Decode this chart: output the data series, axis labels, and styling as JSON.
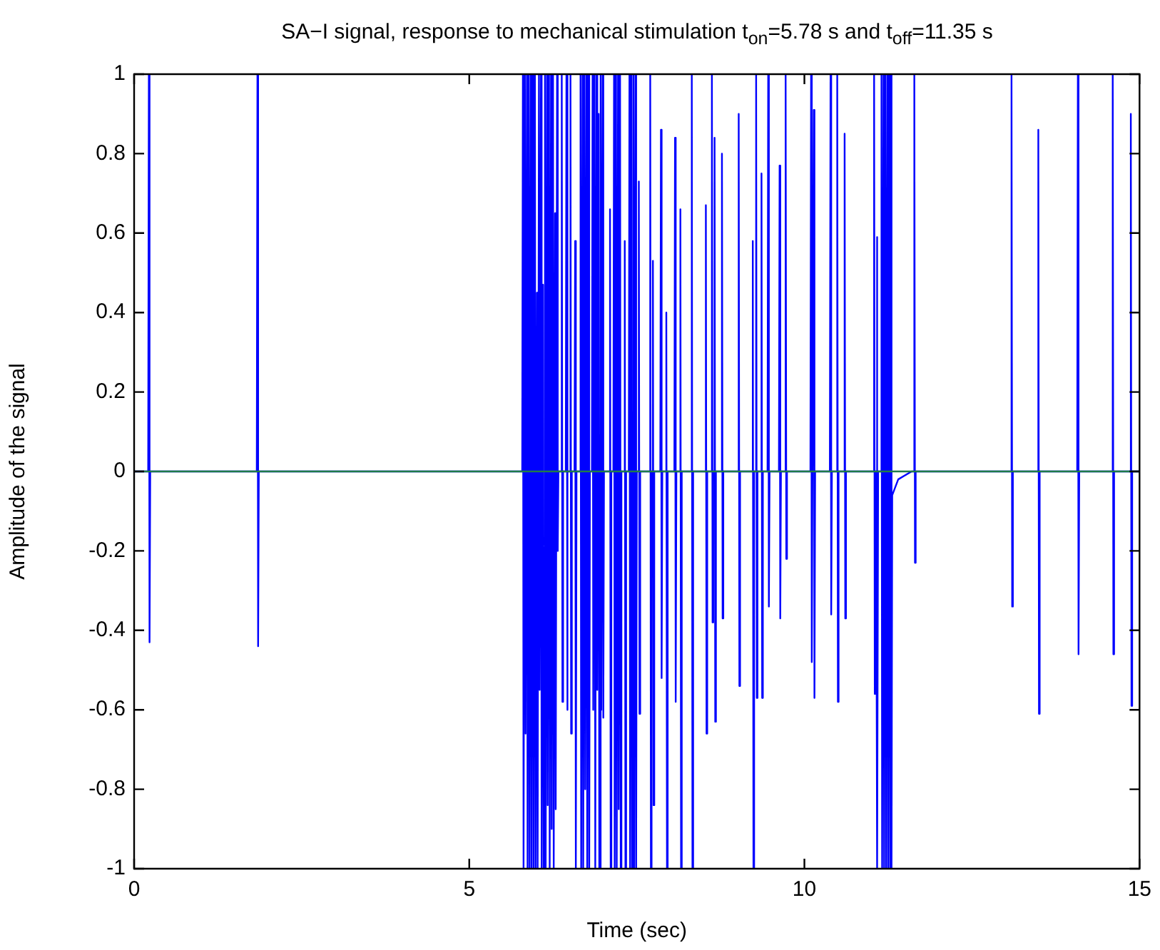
{
  "chart_data": {
    "type": "line",
    "title": "SA−I signal, response to mechanical stimulation t$_{on}$=5.78 s and t$_{off}$=11.35 s",
    "xlabel": "Time (sec)",
    "ylabel": "Amplitude of the signal",
    "xlim": [
      0,
      15
    ],
    "xticks": [
      0,
      5,
      10,
      15
    ],
    "ylim": [
      -1,
      1
    ],
    "yticks": [
      -1,
      -0.8,
      -0.6,
      -0.4,
      -0.2,
      0,
      0.2,
      0.4,
      0.6,
      0.8,
      1
    ],
    "grid": false,
    "marker": "none",
    "line_style": "solid",
    "series": [
      {
        "color": "#0000ff",
        "x": [
          0,
          0.21,
          0.22,
          0.23,
          0.24,
          1.83,
          1.84,
          1.85,
          1.86,
          5.79,
          5.8,
          5.81,
          5.83,
          5.84,
          5.86,
          5.87,
          5.89,
          5.9,
          5.92,
          5.93,
          5.95,
          5.96,
          5.98,
          5.99,
          6.01,
          6.02,
          6.04,
          6.05,
          6.07,
          6.08,
          6.1,
          6.11,
          6.13,
          6.14,
          6.16,
          6.17,
          6.19,
          6.2,
          6.22,
          6.23,
          6.25,
          6.26,
          6.28,
          6.29,
          6.31,
          6.32,
          6.33,
          6.37,
          6.38,
          6.39,
          6.4,
          6.44,
          6.45,
          6.46,
          6.47,
          6.5,
          6.51,
          6.52,
          6.53,
          6.57,
          6.58,
          6.59,
          6.6,
          6.65,
          6.66,
          6.67,
          6.69,
          6.7,
          6.72,
          6.73,
          6.75,
          6.76,
          6.78,
          6.79,
          6.8,
          6.83,
          6.84,
          6.85,
          6.87,
          6.88,
          6.9,
          6.91,
          6.93,
          6.94,
          6.96,
          6.97,
          6.99,
          7.0,
          7.01,
          7.09,
          7.1,
          7.11,
          7.12,
          7.15,
          7.16,
          7.17,
          7.19,
          7.2,
          7.22,
          7.23,
          7.25,
          7.26,
          7.27,
          7.31,
          7.32,
          7.33,
          7.34,
          7.38,
          7.39,
          7.4,
          7.42,
          7.43,
          7.45,
          7.46,
          7.48,
          7.49,
          7.5,
          7.52,
          7.53,
          7.54,
          7.55,
          7.69,
          7.7,
          7.71,
          7.72,
          7.73,
          7.74,
          7.75,
          7.76,
          7.85,
          7.86,
          7.87,
          7.88,
          7.93,
          7.94,
          7.95,
          7.96,
          8.06,
          8.07,
          8.08,
          8.09,
          8.14,
          8.15,
          8.16,
          8.17,
          8.31,
          8.32,
          8.33,
          8.34,
          8.52,
          8.53,
          8.54,
          8.55,
          8.61,
          8.62,
          8.63,
          8.64,
          8.65,
          8.66,
          8.67,
          8.68,
          8.76,
          8.77,
          8.78,
          8.79,
          9.01,
          9.02,
          9.03,
          9.04,
          9.22,
          9.23,
          9.24,
          9.25,
          9.27,
          9.28,
          9.29,
          9.3,
          9.35,
          9.36,
          9.37,
          9.38,
          9.45,
          9.46,
          9.47,
          9.48,
          9.62,
          9.63,
          9.64,
          9.65,
          9.71,
          9.72,
          9.73,
          9.74,
          10.09,
          10.1,
          10.11,
          10.12,
          10.13,
          10.14,
          10.15,
          10.16,
          10.38,
          10.39,
          10.4,
          10.41,
          10.48,
          10.49,
          10.5,
          10.51,
          10.59,
          10.6,
          10.61,
          10.62,
          11.03,
          11.04,
          11.05,
          11.06,
          11.07,
          11.08,
          11.09,
          11.1,
          11.14,
          11.15,
          11.16,
          11.18,
          11.19,
          11.21,
          11.22,
          11.24,
          11.25,
          11.27,
          11.28,
          11.29,
          11.3,
          11.31,
          11.4,
          11.5,
          11.6,
          11.63,
          11.64,
          11.65,
          11.66,
          13.08,
          13.09,
          13.1,
          13.11,
          13.48,
          13.49,
          13.5,
          13.51,
          14.07,
          14.08,
          14.09,
          14.1,
          14.59,
          14.6,
          14.61,
          14.62,
          14.86,
          14.87,
          14.88,
          14.89,
          15
        ],
        "values": [
          0,
          0,
          1,
          -0.43,
          0,
          0,
          1,
          -0.44,
          0,
          0,
          1,
          -1,
          1,
          -0.66,
          1,
          -1,
          1,
          -1,
          1,
          -1,
          1,
          -1,
          1,
          -1,
          0.45,
          -1,
          1,
          -0.55,
          1,
          -1,
          0.47,
          -1,
          1,
          -1,
          1,
          -0.84,
          1,
          -1,
          1,
          -0.9,
          1,
          -1,
          0.65,
          -0.85,
          1,
          -0.2,
          0,
          0,
          1,
          -0.58,
          0,
          0,
          1,
          -0.6,
          0,
          0,
          1,
          -0.66,
          0,
          0,
          0.58,
          -1,
          0,
          0,
          1,
          -1,
          1,
          -1,
          1,
          -0.8,
          1,
          -1,
          1,
          -1,
          0,
          0,
          1,
          -0.6,
          1,
          -1,
          1,
          -0.55,
          0.9,
          -1,
          1,
          -0.6,
          1,
          -0.62,
          0,
          0,
          0.66,
          -1,
          0,
          0,
          1,
          -1,
          1,
          -1,
          1,
          -0.85,
          1,
          -1,
          0,
          0,
          0.58,
          -1,
          0,
          0,
          1,
          -1,
          1,
          -1,
          1,
          -1,
          1,
          -1,
          0,
          0,
          0.73,
          -0.61,
          0,
          0,
          1,
          -1,
          0,
          0,
          0.53,
          -0.84,
          0,
          0,
          0.86,
          -0.52,
          0,
          0,
          0.4,
          -1,
          0,
          0,
          0.84,
          -0.58,
          0,
          0,
          0.66,
          -1,
          0,
          0,
          1,
          -1,
          0,
          0,
          0.67,
          -0.66,
          0,
          0,
          1,
          -0.38,
          0,
          0,
          0.84,
          -0.63,
          0,
          0,
          0.8,
          -0.37,
          0,
          0,
          0.9,
          -0.54,
          0,
          0,
          0.58,
          -1,
          0,
          0,
          1,
          -0.57,
          0,
          0,
          0.75,
          -0.57,
          0,
          0,
          1,
          -0.34,
          0,
          0,
          0.77,
          -0.37,
          0,
          0,
          1,
          -0.22,
          0,
          0,
          1,
          -0.48,
          0,
          0,
          0.91,
          -0.57,
          0,
          0,
          1,
          -0.36,
          0,
          0,
          1,
          -0.58,
          0,
          0,
          0.85,
          -0.37,
          0,
          0,
          1,
          -0.56,
          0,
          0,
          0.59,
          -1,
          0,
          0,
          1,
          -1,
          1,
          -1,
          1,
          -1,
          1,
          -1,
          1,
          -1,
          1,
          -1,
          -0.06,
          -0.02,
          -0.01,
          0,
          0,
          1,
          -0.23,
          0,
          0,
          1,
          -0.34,
          0,
          0,
          0.86,
          -0.61,
          0,
          0,
          1,
          -0.46,
          0,
          0,
          1,
          -0.46,
          0,
          0,
          0.9,
          -0.59,
          0,
          0
        ]
      },
      {
        "color": "#1f7a4a",
        "x": [
          0,
          15
        ],
        "values": [
          0,
          0
        ]
      }
    ]
  }
}
